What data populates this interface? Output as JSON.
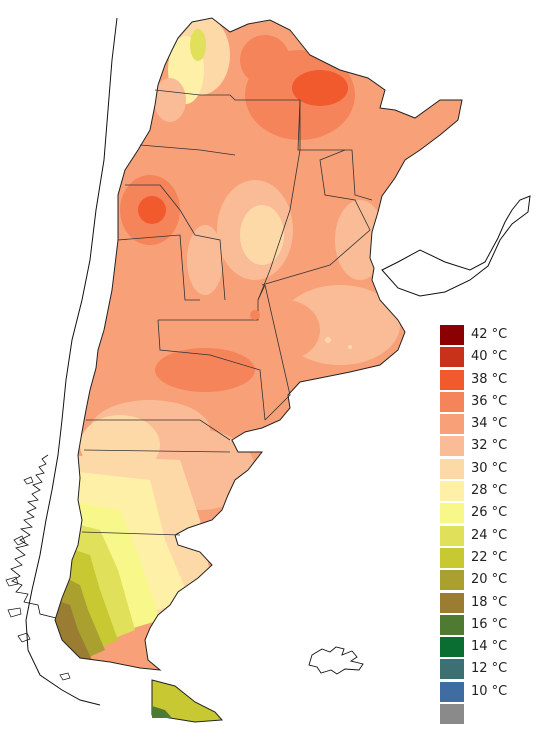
{
  "legend": {
    "items": [
      {
        "label": "42 °C",
        "color": "#8b0000"
      },
      {
        "label": "40 °C",
        "color": "#c8321a"
      },
      {
        "label": "38 °C",
        "color": "#f05a2d"
      },
      {
        "label": "36 °C",
        "color": "#f5845a"
      },
      {
        "label": "34 °C",
        "color": "#f8a078"
      },
      {
        "label": "32 °C",
        "color": "#fabc96"
      },
      {
        "label": "30 °C",
        "color": "#fdd9a8"
      },
      {
        "label": "28 °C",
        "color": "#fff0a8"
      },
      {
        "label": "26 °C",
        "color": "#f7f78a"
      },
      {
        "label": "24 °C",
        "color": "#e0e05a"
      },
      {
        "label": "22 °C",
        "color": "#c8c832"
      },
      {
        "label": "20 °C",
        "color": "#aaa030"
      },
      {
        "label": "18 °C",
        "color": "#9a7d32"
      },
      {
        "label": "16 °C",
        "color": "#4f7a32"
      },
      {
        "label": "14 °C",
        "color": "#0a6e32"
      },
      {
        "label": "12 °C",
        "color": "#3c7073"
      },
      {
        "label": "10 °C",
        "color": "#3f6ca1"
      },
      {
        "label": "",
        "color": "#8a8a8a"
      }
    ]
  },
  "map": {
    "ocean_color": "#ffffff",
    "border_color": "#111111"
  }
}
